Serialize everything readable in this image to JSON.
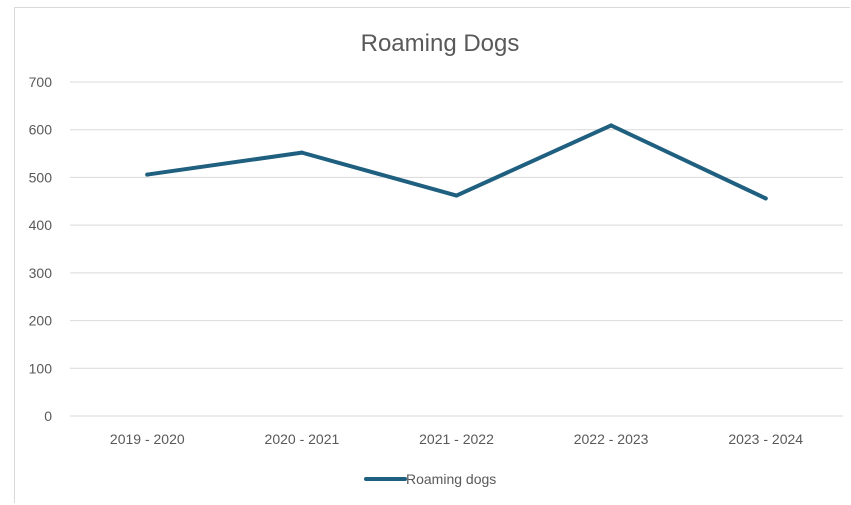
{
  "chart_data": {
    "type": "line",
    "title": "Roaming Dogs",
    "xlabel": "",
    "ylabel": "",
    "categories": [
      "2019 - 2020",
      "2020 - 2021",
      "2021 - 2022",
      "2022 - 2023",
      "2023 - 2024"
    ],
    "series": [
      {
        "name": "Roaming dogs",
        "values": [
          506,
          552,
          462,
          609,
          456
        ],
        "color": "#1f5f7f"
      }
    ],
    "ylim": [
      0,
      700
    ],
    "yticks": [
      "0",
      "100",
      "200",
      "300",
      "400",
      "500",
      "600",
      "700"
    ],
    "grid": true,
    "legend_position": "bottom"
  }
}
